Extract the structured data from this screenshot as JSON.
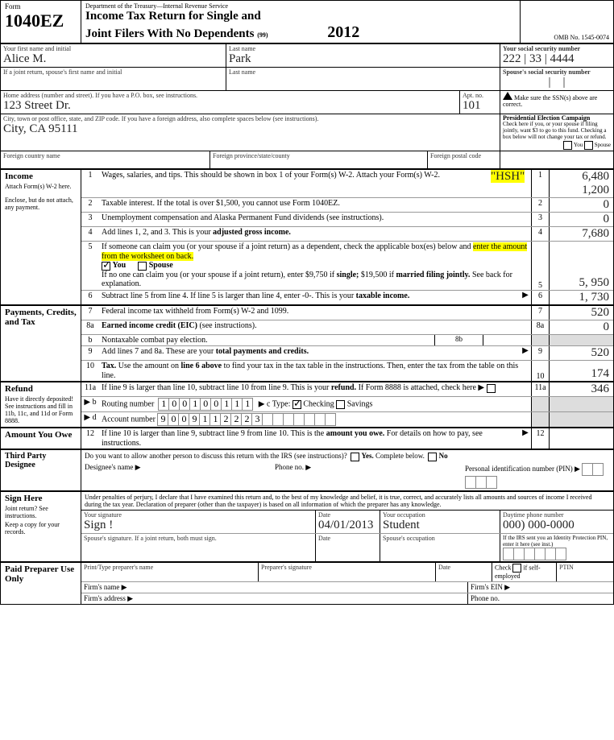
{
  "header": {
    "dept": "Department of the Treasury—Internal Revenue Service",
    "form_word": "Form",
    "form_num": "1040EZ",
    "title1": "Income Tax Return for Single and",
    "title2": "Joint Filers With No Dependents",
    "code": "(99)",
    "year": "2012",
    "omb": "OMB No. 1545-0074"
  },
  "id": {
    "first_lbl": "Your first name and initial",
    "first": "Alice    M.",
    "last_lbl": "Last name",
    "last": "Park",
    "ssn_lbl": "Your social security number",
    "ssn": "222 | 33 | 4444",
    "sp_first_lbl": "If a joint return, spouse's first name and initial",
    "sp_last_lbl": "Last name",
    "sp_ssn_lbl": "Spouse's social security number",
    "addr_lbl": "Home address (number and street). If you have a P.O. box, see instructions.",
    "addr": "123   Street   Dr.",
    "apt_lbl": "Apt. no.",
    "apt": "101",
    "city_lbl": "City, town or post office, state, and ZIP code. If you have a foreign address, also complete spaces below (see instructions).",
    "city": "City,     CA    95111",
    "ssn_note": "Make sure the SSN(s) above are correct.",
    "fc_lbl": "Foreign country name",
    "fp_lbl": "Foreign province/state/county",
    "fpc_lbl": "Foreign postal code",
    "pec_title": "Presidential Election Campaign",
    "pec_text": "Check here if you, or your spouse if filing jointly, want $3 to go to this fund. Checking a box below will not change your tax or refund.",
    "pec_you": "You",
    "pec_sp": "Spouse"
  },
  "income": {
    "title": "Income",
    "sub1": "Attach Form(s) W-2 here.",
    "sub2": "Enclose, but do not attach, any payment.",
    "l1": "Wages, salaries, and tips. This should be shown in box 1 of your Form(s) W-2. Attach your Form(s) W-2.",
    "hsh": "\"HSH\"",
    "a1a": "6,480",
    "a1b": "1,200",
    "l2": "Taxable interest. If the total is over $1,500, you cannot use Form 1040EZ.",
    "a2": "0",
    "l3": "Unemployment compensation and Alaska Permanent Fund dividends (see instructions).",
    "a3": "0",
    "l4a": "Add lines 1, 2, and 3. This is your ",
    "l4b": "adjusted gross income.",
    "a4": "7,680",
    "l5a": "If someone can claim you (or your spouse if a joint return) as a dependent, check the applicable box(es) below and ",
    "l5b": "enter the amount from the worksheet on back.",
    "l5you": "You",
    "l5sp": "Spouse",
    "l5c": "If no one can claim you (or your spouse if a joint return), enter $9,750 if ",
    "l5d": "single;",
    "l5e": " $19,500 if ",
    "l5f": "married filing jointly.",
    "l5g": " See back for explanation.",
    "a5": "5, 950",
    "l6a": "Subtract line 5 from line 4. If line 5 is larger than line 4, enter -0-. This is your ",
    "l6b": "taxable income.",
    "a6": "1, 730"
  },
  "pay": {
    "title": "Payments, Credits, and Tax",
    "l7": "Federal income tax withheld from Form(s) W-2 and 1099.",
    "a7": "520",
    "l8a": "Earned income credit (EIC)",
    "l8a2": " (see instructions).",
    "a8a": "0",
    "l8b": "Nontaxable combat pay election.",
    "l8blbl": "8b",
    "l9a": "Add lines 7 and 8a. These are your ",
    "l9b": "total payments and credits.",
    "a9": "520",
    "l10a": "Tax.",
    "l10b": " Use the amount on ",
    "l10c": "line 6 above",
    "l10d": " to find your tax in the tax table in the instructions. Then, enter the tax from the table on this line.",
    "a10": "174"
  },
  "refund": {
    "title": "Refund",
    "sub": "Have it directly deposited! See instructions and fill in 11b, 11c, and 11d or Form 8888.",
    "l11a": "If line 9 is larger than line 10, subtract line 10 from line 9. This is your ",
    "l11b": "refund.",
    "l11c": " If Form 8888 is attached, check here ▶",
    "a11": "346",
    "l11rb": "Routing number",
    "routing": [
      "1",
      "0",
      "0",
      "1",
      "0",
      "0",
      "1",
      "1",
      "1"
    ],
    "ctype": "▶ c Type:",
    "chk": "Checking",
    "sav": "Savings",
    "l11d": "Account number",
    "acct": [
      "9",
      "0",
      "0",
      "9",
      "1",
      "1",
      "2",
      "2",
      "2",
      "3",
      "",
      "",
      "",
      "",
      "",
      "",
      ""
    ]
  },
  "owe": {
    "title": "Amount You Owe",
    "l12a": "If line 10 is larger than line 9, subtract line 9 from line 10. This is the ",
    "l12b": "amount you owe.",
    "l12c": " For details on how to pay, see instructions."
  },
  "tpd": {
    "title": "Third Party Designee",
    "q": "Do you want to allow another person to discuss this return with the IRS (see instructions)?",
    "yes": "Yes.",
    "yc": " Complete below.",
    "no": "No",
    "dn": "Designee's name",
    "ph": "Phone no.",
    "pin": "Personal identification number (PIN)"
  },
  "sign": {
    "title": "Sign Here",
    "perjury": "Under penalties of perjury, I declare that I have examined this return and, to the best of my knowledge and belief, it is true, correct, and accurately lists all amounts and sources of income I received during the tax year. Declaration of preparer (other than the taxpayer) is based on all information of which the preparer has any knowledge.",
    "jr": "Joint return? See instructions.",
    "keep": "Keep a copy for your records.",
    "ys": "Your signature",
    "sig": "Sign !",
    "date_lbl": "Date",
    "date": "04/01/2013",
    "occ_lbl": "Your occupation",
    "occ": "Student",
    "phone_lbl": "Daytime phone number",
    "phone": "000) 000-0000",
    "sps": "Spouse's signature. If a joint return, both must sign.",
    "sdate": "Date",
    "socc": "Spouse's occupation",
    "ipin": "If the IRS sent you an Identity Protection PIN, enter it here (see inst.)"
  },
  "prep": {
    "title": "Paid Preparer Use Only",
    "name": "Print/Type preparer's name",
    "sig": "Preparer's signature",
    "date": "Date",
    "chk": "Check",
    "se": "if self-employed",
    "ptin": "PTIN",
    "fn": "Firm's name ▶",
    "fein": "Firm's EIN ▶",
    "fa": "Firm's address ▶",
    "ph": "Phone no."
  }
}
